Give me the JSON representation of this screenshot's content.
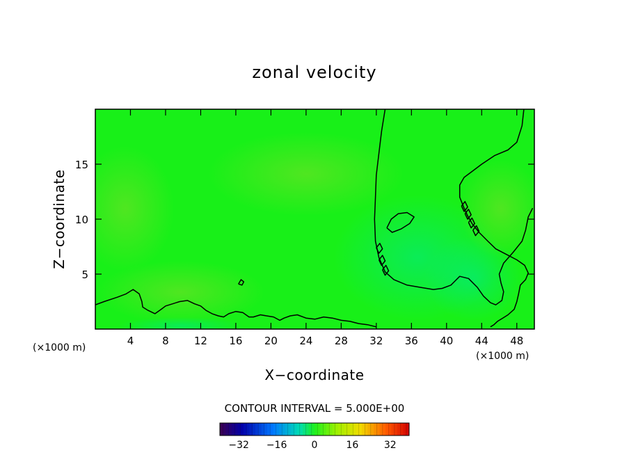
{
  "chart_data": {
    "type": "heatmap",
    "title": "zonal velocity",
    "xlabel": "X−coordinate",
    "ylabel": "Z−coordinate",
    "x_unit_left": "(×1000 m)",
    "x_unit_right": "(×1000 m)",
    "xlim": [
      0,
      50
    ],
    "ylim": [
      0,
      20
    ],
    "x_ticks": [
      4,
      8,
      12,
      16,
      20,
      24,
      28,
      32,
      36,
      40,
      44,
      48
    ],
    "y_ticks": [
      5,
      10,
      15
    ],
    "contour_interval_text": "CONTOUR INTERVAL = 5.000E+00",
    "colorbar": {
      "range": [
        -40,
        40
      ],
      "ticks": [
        -32,
        -16,
        0,
        16,
        32
      ],
      "tick_labels": [
        "−32",
        "−16",
        "0",
        "16",
        "32"
      ]
    },
    "contour_lines": [
      {
        "level": 0,
        "points": [
          [
            33.0,
            20
          ],
          [
            32.6,
            18
          ],
          [
            32.3,
            16
          ],
          [
            32.0,
            14
          ],
          [
            31.9,
            12
          ],
          [
            31.8,
            10
          ],
          [
            31.9,
            8
          ],
          [
            32.3,
            6.5
          ],
          [
            33.0,
            5.2
          ],
          [
            34.0,
            4.5
          ],
          [
            35.5,
            4.0
          ],
          [
            37.0,
            3.8
          ],
          [
            38.5,
            3.6
          ],
          [
            39.5,
            3.7
          ],
          [
            40.5,
            4.0
          ],
          [
            41.0,
            4.4
          ],
          [
            41.5,
            4.8
          ],
          [
            42.5,
            4.6
          ],
          [
            43.5,
            3.8
          ],
          [
            44.2,
            3.0
          ],
          [
            45.0,
            2.4
          ],
          [
            45.6,
            2.2
          ],
          [
            46.3,
            2.6
          ],
          [
            46.5,
            3.4
          ],
          [
            46.2,
            4.2
          ],
          [
            46.0,
            5.0
          ],
          [
            46.5,
            6.0
          ],
          [
            47.6,
            7.0
          ],
          [
            48.6,
            8.0
          ],
          [
            49.0,
            9.0
          ],
          [
            49.3,
            10.2
          ],
          [
            49.8,
            11.0
          ]
        ]
      },
      {
        "level": 0,
        "points": [
          [
            48.8,
            20
          ],
          [
            48.6,
            18.5
          ],
          [
            48.0,
            17.0
          ],
          [
            47.0,
            16.3
          ],
          [
            45.5,
            15.8
          ],
          [
            44.0,
            15.0
          ],
          [
            43.0,
            14.4
          ],
          [
            42.0,
            13.8
          ],
          [
            41.5,
            13.1
          ],
          [
            41.5,
            12.0
          ],
          [
            42.0,
            11.0
          ],
          [
            42.4,
            10.3
          ],
          [
            42.9,
            9.6
          ],
          [
            43.7,
            8.8
          ],
          [
            44.7,
            8.0
          ],
          [
            45.6,
            7.3
          ],
          [
            46.8,
            6.8
          ],
          [
            48.0,
            6.3
          ],
          [
            48.9,
            5.8
          ],
          [
            49.3,
            5.1
          ],
          [
            49.0,
            4.5
          ],
          [
            48.4,
            4.0
          ],
          [
            48.2,
            3.2
          ],
          [
            48.0,
            2.5
          ],
          [
            47.7,
            1.8
          ],
          [
            47.0,
            1.3
          ],
          [
            46.4,
            1.0
          ],
          [
            45.8,
            0.7
          ],
          [
            45.4,
            0.4
          ],
          [
            45.0,
            0.2
          ]
        ]
      },
      {
        "level": 0,
        "points": [
          [
            33.2,
            9.2
          ],
          [
            33.7,
            10.0
          ],
          [
            34.5,
            10.5
          ],
          [
            35.5,
            10.6
          ],
          [
            36.3,
            10.2
          ],
          [
            35.8,
            9.6
          ],
          [
            34.8,
            9.1
          ],
          [
            33.8,
            8.8
          ],
          [
            33.2,
            9.2
          ]
        ]
      },
      {
        "level": 0,
        "points": [
          [
            0,
            2.2
          ],
          [
            1.0,
            2.5
          ],
          [
            2.5,
            2.9
          ],
          [
            3.5,
            3.2
          ],
          [
            4.3,
            3.6
          ],
          [
            5.0,
            3.2
          ],
          [
            5.3,
            2.5
          ],
          [
            5.4,
            2.0
          ],
          [
            6.0,
            1.7
          ],
          [
            6.8,
            1.4
          ],
          [
            7.5,
            1.8
          ],
          [
            8.0,
            2.1
          ],
          [
            8.8,
            2.3
          ],
          [
            9.6,
            2.5
          ],
          [
            10.5,
            2.6
          ],
          [
            11.3,
            2.3
          ],
          [
            12.0,
            2.1
          ],
          [
            12.6,
            1.7
          ],
          [
            13.3,
            1.4
          ],
          [
            14.0,
            1.2
          ],
          [
            14.6,
            1.1
          ],
          [
            15.2,
            1.4
          ],
          [
            16.0,
            1.6
          ],
          [
            16.8,
            1.5
          ],
          [
            17.5,
            1.1
          ],
          [
            18.0,
            1.1
          ],
          [
            18.8,
            1.3
          ],
          [
            19.5,
            1.2
          ],
          [
            20.3,
            1.1
          ],
          [
            21.0,
            0.8
          ],
          [
            21.5,
            1.0
          ],
          [
            22.2,
            1.2
          ],
          [
            23.0,
            1.3
          ],
          [
            24.0,
            1.0
          ],
          [
            25.0,
            0.9
          ],
          [
            26.0,
            1.1
          ],
          [
            27.0,
            1.0
          ],
          [
            28.0,
            0.8
          ],
          [
            29.0,
            0.7
          ],
          [
            30.0,
            0.5
          ],
          [
            31.0,
            0.4
          ],
          [
            32.0,
            0.2
          ]
        ]
      },
      {
        "level": 0,
        "points": [
          [
            16.3,
            4.1
          ],
          [
            16.6,
            4.5
          ],
          [
            16.9,
            4.3
          ],
          [
            16.7,
            4.0
          ],
          [
            16.3,
            4.1
          ]
        ]
      },
      {
        "level": 0,
        "points": [
          [
            32.0,
            7.4
          ],
          [
            32.4,
            7.8
          ],
          [
            32.7,
            7.3
          ],
          [
            32.3,
            6.9
          ],
          [
            32.0,
            7.4
          ]
        ]
      },
      {
        "level": 0,
        "points": [
          [
            32.3,
            6.3
          ],
          [
            32.7,
            6.7
          ],
          [
            33.0,
            6.2
          ],
          [
            32.6,
            5.8
          ],
          [
            32.3,
            6.3
          ]
        ]
      },
      {
        "level": 0,
        "points": [
          [
            32.7,
            5.4
          ],
          [
            33.1,
            5.8
          ],
          [
            33.4,
            5.3
          ],
          [
            33.0,
            4.9
          ],
          [
            32.7,
            5.4
          ]
        ]
      },
      {
        "level": 0,
        "points": [
          [
            41.7,
            11.2
          ],
          [
            42.1,
            11.6
          ],
          [
            42.4,
            11.1
          ],
          [
            42.0,
            10.7
          ],
          [
            41.7,
            11.2
          ]
        ]
      },
      {
        "level": 0,
        "points": [
          [
            42.1,
            10.5
          ],
          [
            42.5,
            10.9
          ],
          [
            42.8,
            10.4
          ],
          [
            42.4,
            10.0
          ],
          [
            42.1,
            10.5
          ]
        ]
      },
      {
        "level": 0,
        "points": [
          [
            42.5,
            9.7
          ],
          [
            42.9,
            10.1
          ],
          [
            43.2,
            9.6
          ],
          [
            42.8,
            9.2
          ],
          [
            42.5,
            9.7
          ]
        ]
      },
      {
        "level": 0,
        "points": [
          [
            43.0,
            9.0
          ],
          [
            43.4,
            9.4
          ],
          [
            43.7,
            8.9
          ],
          [
            43.3,
            8.5
          ],
          [
            43.0,
            9.0
          ]
        ]
      }
    ]
  }
}
